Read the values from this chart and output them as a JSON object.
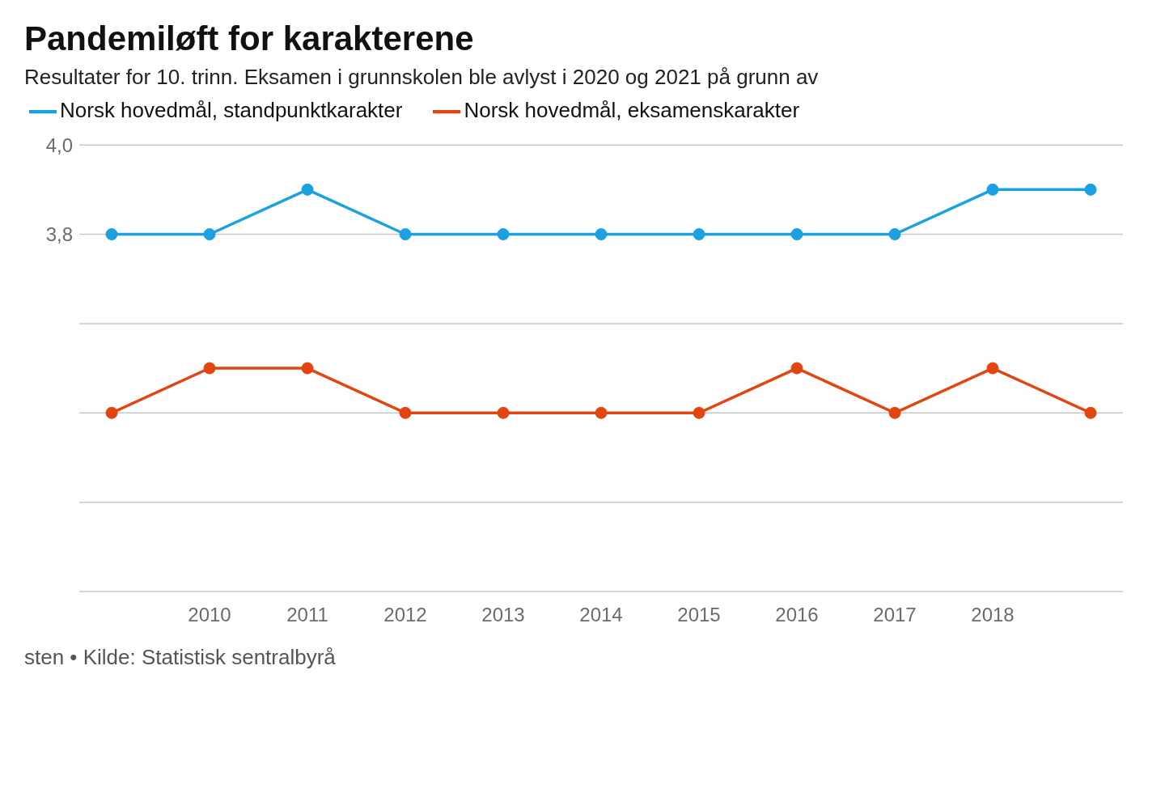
{
  "chart_data": {
    "type": "line",
    "title": "Pandemiløft for karakterene",
    "subtitle": "Resultater for 10. trinn. Eksamen i grunnskolen ble avlyst i 2020 og 2021 på grunn av",
    "categories": [
      null,
      "2010",
      "2011",
      "2012",
      "2013",
      "2014",
      "2015",
      "2016",
      "2017",
      "2018",
      null
    ],
    "series": [
      {
        "name": "Norsk hovedmål, standpunktkarakter",
        "color": "#1ba1e2",
        "values": [
          3.8,
          3.8,
          3.9,
          3.8,
          3.8,
          3.8,
          3.8,
          3.8,
          3.8,
          3.9,
          3.9
        ]
      },
      {
        "name": "Norsk hovedmål, eksamenskarakter",
        "color": "#e2450f",
        "values": [
          3.4,
          3.5,
          3.5,
          3.4,
          3.4,
          3.4,
          3.4,
          3.5,
          3.4,
          3.5,
          3.4
        ]
      }
    ],
    "ylim": [
      3,
      4
    ],
    "yticks": [
      {
        "value": 3,
        "label": null
      },
      {
        "value": 3.2,
        "label": null
      },
      {
        "value": 3.4,
        "label": null
      },
      {
        "value": 3.6,
        "label": null
      },
      {
        "value": 3.8,
        "label": "3,8"
      },
      {
        "value": 4,
        "label": "4,0"
      }
    ],
    "grid": "y",
    "legend": "top left",
    "marker": "circle",
    "annotations": [
      "sten • Kilde: Statistisk sentralbyrå"
    ]
  }
}
